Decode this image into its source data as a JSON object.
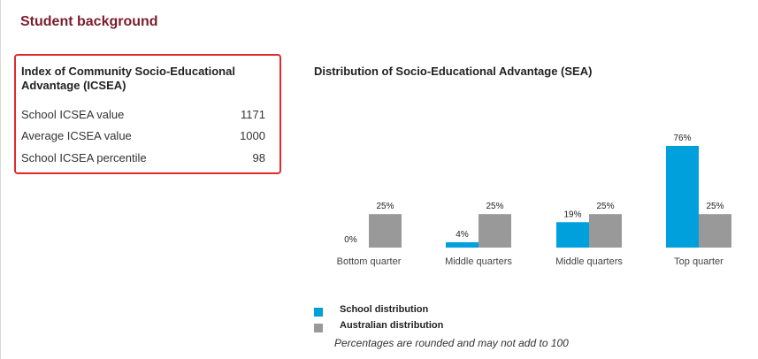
{
  "section": {
    "title": "Student background"
  },
  "icsea": {
    "heading": "Index of Community Socio-Educational Advantage (ICSEA)",
    "rows": [
      {
        "label": "School ICSEA value",
        "value": "1171"
      },
      {
        "label": "Average ICSEA value",
        "value": "1000"
      },
      {
        "label": "School ICSEA percentile",
        "value": "98"
      }
    ]
  },
  "chart_title": "Distribution of Socio-Educational Advantage (SEA)",
  "chart_data": {
    "type": "bar",
    "title": "Distribution of Socio-Educational Advantage (SEA)",
    "categories": [
      "Bottom quarter",
      "Middle quarters",
      "Middle quarters",
      "Top quarter"
    ],
    "series": [
      {
        "name": "School distribution",
        "color": "#00a0dc",
        "values": [
          0,
          4,
          19,
          76
        ],
        "labels": [
          "0%",
          "4%",
          "19%",
          "76%"
        ]
      },
      {
        "name": "Australian distribution",
        "color": "#999999",
        "values": [
          25,
          25,
          25,
          25
        ],
        "labels": [
          "25%",
          "25%",
          "25%",
          "25%"
        ]
      }
    ],
    "ylim": [
      0,
      76
    ],
    "grid": false,
    "legend": "bottom-left"
  },
  "legend": {
    "items": [
      {
        "label": "School distribution",
        "color": "#00a0dc"
      },
      {
        "label": "Australian distribution",
        "color": "#999999"
      }
    ],
    "note": "Percentages are rounded and may not add to 100"
  }
}
